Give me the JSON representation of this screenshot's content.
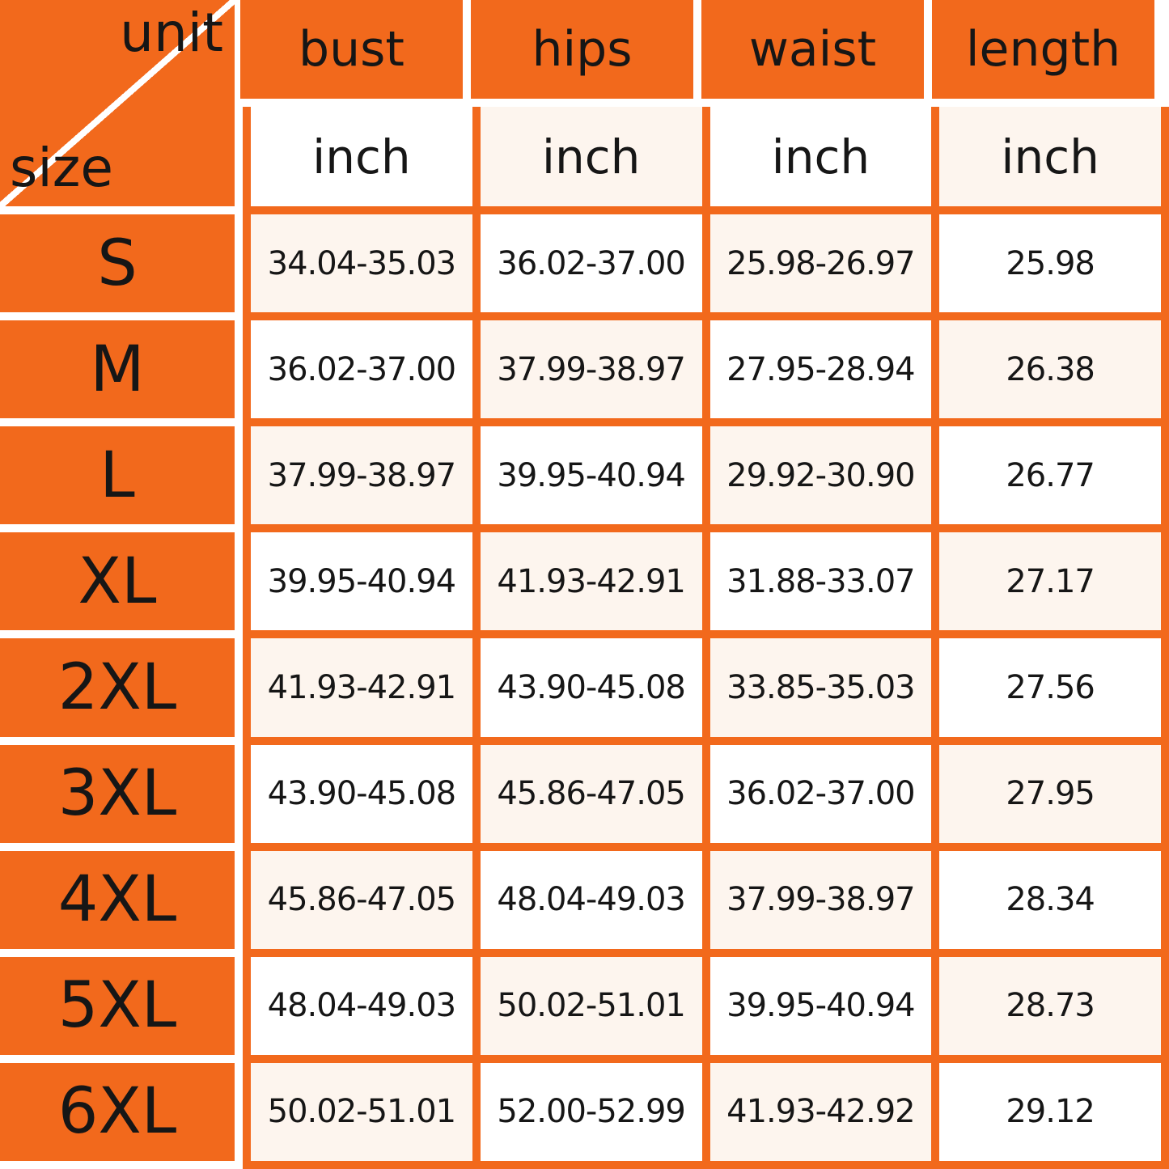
{
  "table": {
    "corner": {
      "top_label": "unit",
      "bottom_label": "size"
    },
    "columns": [
      "bust",
      "hips",
      "waist",
      "length"
    ],
    "unit_row": [
      "inch",
      "inch",
      "inch",
      "inch"
    ],
    "rows": [
      {
        "size": "S",
        "bust": "34.04-35.03",
        "hips": "36.02-37.00",
        "waist": "25.98-26.97",
        "length": "25.98"
      },
      {
        "size": "M",
        "bust": "36.02-37.00",
        "hips": "37.99-38.97",
        "waist": "27.95-28.94",
        "length": "26.38"
      },
      {
        "size": "L",
        "bust": "37.99-38.97",
        "hips": "39.95-40.94",
        "waist": "29.92-30.90",
        "length": "26.77"
      },
      {
        "size": "XL",
        "bust": "39.95-40.94",
        "hips": "41.93-42.91",
        "waist": "31.88-33.07",
        "length": "27.17"
      },
      {
        "size": "2XL",
        "bust": "41.93-42.91",
        "hips": "43.90-45.08",
        "waist": "33.85-35.03",
        "length": "27.56"
      },
      {
        "size": "3XL",
        "bust": "43.90-45.08",
        "hips": "45.86-47.05",
        "waist": "36.02-37.00",
        "length": "27.95"
      },
      {
        "size": "4XL",
        "bust": "45.86-47.05",
        "hips": "48.04-49.03",
        "waist": "37.99-38.97",
        "length": "28.34"
      },
      {
        "size": "5XL",
        "bust": "48.04-49.03",
        "hips": "50.02-51.01",
        "waist": "39.95-40.94",
        "length": "28.73"
      },
      {
        "size": "6XL",
        "bust": "50.02-51.01",
        "hips": "52.00-52.99",
        "waist": "41.93-42.92",
        "length": "29.12"
      }
    ]
  },
  "colors": {
    "accent_orange": "#F2691C",
    "cell_cream": "#FDF5EE",
    "cell_white": "#FFFFFF",
    "divider_white": "#FFFFFF",
    "text": "#161616"
  }
}
